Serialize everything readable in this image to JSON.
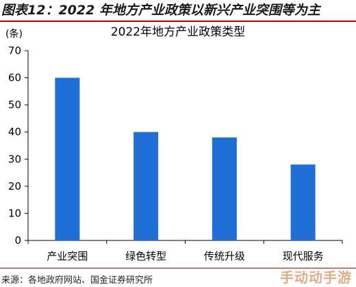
{
  "figure": {
    "title": "图表12：2022 年地方产业政策以新兴产业突围等为主",
    "source": "来源：各地政府网站、国金证券研究所",
    "watermark": "手动动手游"
  },
  "colors": {
    "bar": "#1f6fd6",
    "rule": "#c00000"
  },
  "chart_data": {
    "type": "bar",
    "title": "2022年地方产业政策类型",
    "unit": "(条)",
    "categories": [
      "产业突围",
      "绿色转型",
      "传统升级",
      "现代服务"
    ],
    "values": [
      60,
      40,
      38,
      28
    ],
    "yticks": [
      0,
      10,
      20,
      30,
      40,
      50,
      60,
      70
    ],
    "ylim": [
      0,
      70
    ],
    "grid": false,
    "legend": "none"
  }
}
